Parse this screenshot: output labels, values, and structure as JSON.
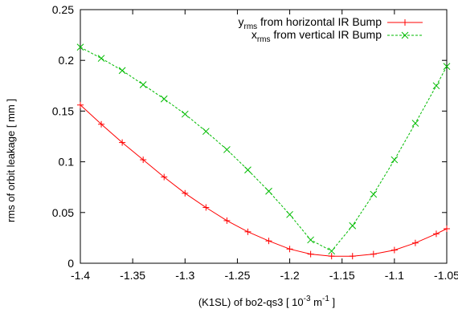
{
  "chart_data": {
    "type": "line",
    "xlabel": "(K1SL) of bo2-qs3 [ 10",
    "xlabel_exp1": "-3",
    "xlabel_unit": " m",
    "xlabel_exp2": "-1",
    "xlabel_end": " ]",
    "ylabel": "rms of orbit leakage [ mm ]",
    "xlim": [
      -1.4,
      -1.05
    ],
    "ylim": [
      0,
      0.25
    ],
    "x_ticks": [
      -1.4,
      -1.35,
      -1.3,
      -1.25,
      -1.2,
      -1.15,
      -1.1,
      -1.05
    ],
    "x_tick_labels": [
      "-1.4",
      "-1.35",
      "-1.3",
      "-1.25",
      "-1.2",
      "-1.15",
      "-1.1",
      "-1.05"
    ],
    "y_ticks": [
      0,
      0.05,
      0.1,
      0.15,
      0.2,
      0.25
    ],
    "y_tick_labels": [
      "0",
      "0.05",
      "0.1",
      "0.15",
      "0.2",
      "0.25"
    ],
    "grid": false,
    "legend_position": "top-right",
    "series": [
      {
        "name_main": "y",
        "name_sub": "rms",
        "name_rest": " from horizontal IR Bump",
        "color": "#ff0000",
        "dash": "solid",
        "marker": "plus",
        "x": [
          -1.4,
          -1.38,
          -1.36,
          -1.34,
          -1.32,
          -1.3,
          -1.28,
          -1.26,
          -1.24,
          -1.22,
          -1.2,
          -1.18,
          -1.16,
          -1.14,
          -1.12,
          -1.1,
          -1.08,
          -1.06,
          -1.05
        ],
        "y": [
          0.156,
          0.137,
          0.119,
          0.102,
          0.085,
          0.069,
          0.055,
          0.042,
          0.031,
          0.022,
          0.014,
          0.009,
          0.007,
          0.007,
          0.009,
          0.013,
          0.02,
          0.029,
          0.034
        ]
      },
      {
        "name_main": "x",
        "name_sub": "rms",
        "name_rest": " from vertical IR Bump",
        "color": "#00bb00",
        "dash": "dashed",
        "marker": "cross",
        "x": [
          -1.4,
          -1.38,
          -1.36,
          -1.34,
          -1.32,
          -1.3,
          -1.28,
          -1.26,
          -1.24,
          -1.22,
          -1.2,
          -1.18,
          -1.16,
          -1.14,
          -1.12,
          -1.1,
          -1.08,
          -1.06,
          -1.05
        ],
        "y": [
          0.213,
          0.202,
          0.19,
          0.176,
          0.162,
          0.147,
          0.13,
          0.112,
          0.092,
          0.071,
          0.048,
          0.023,
          0.012,
          0.037,
          0.068,
          0.102,
          0.138,
          0.175,
          0.194
        ]
      }
    ]
  }
}
